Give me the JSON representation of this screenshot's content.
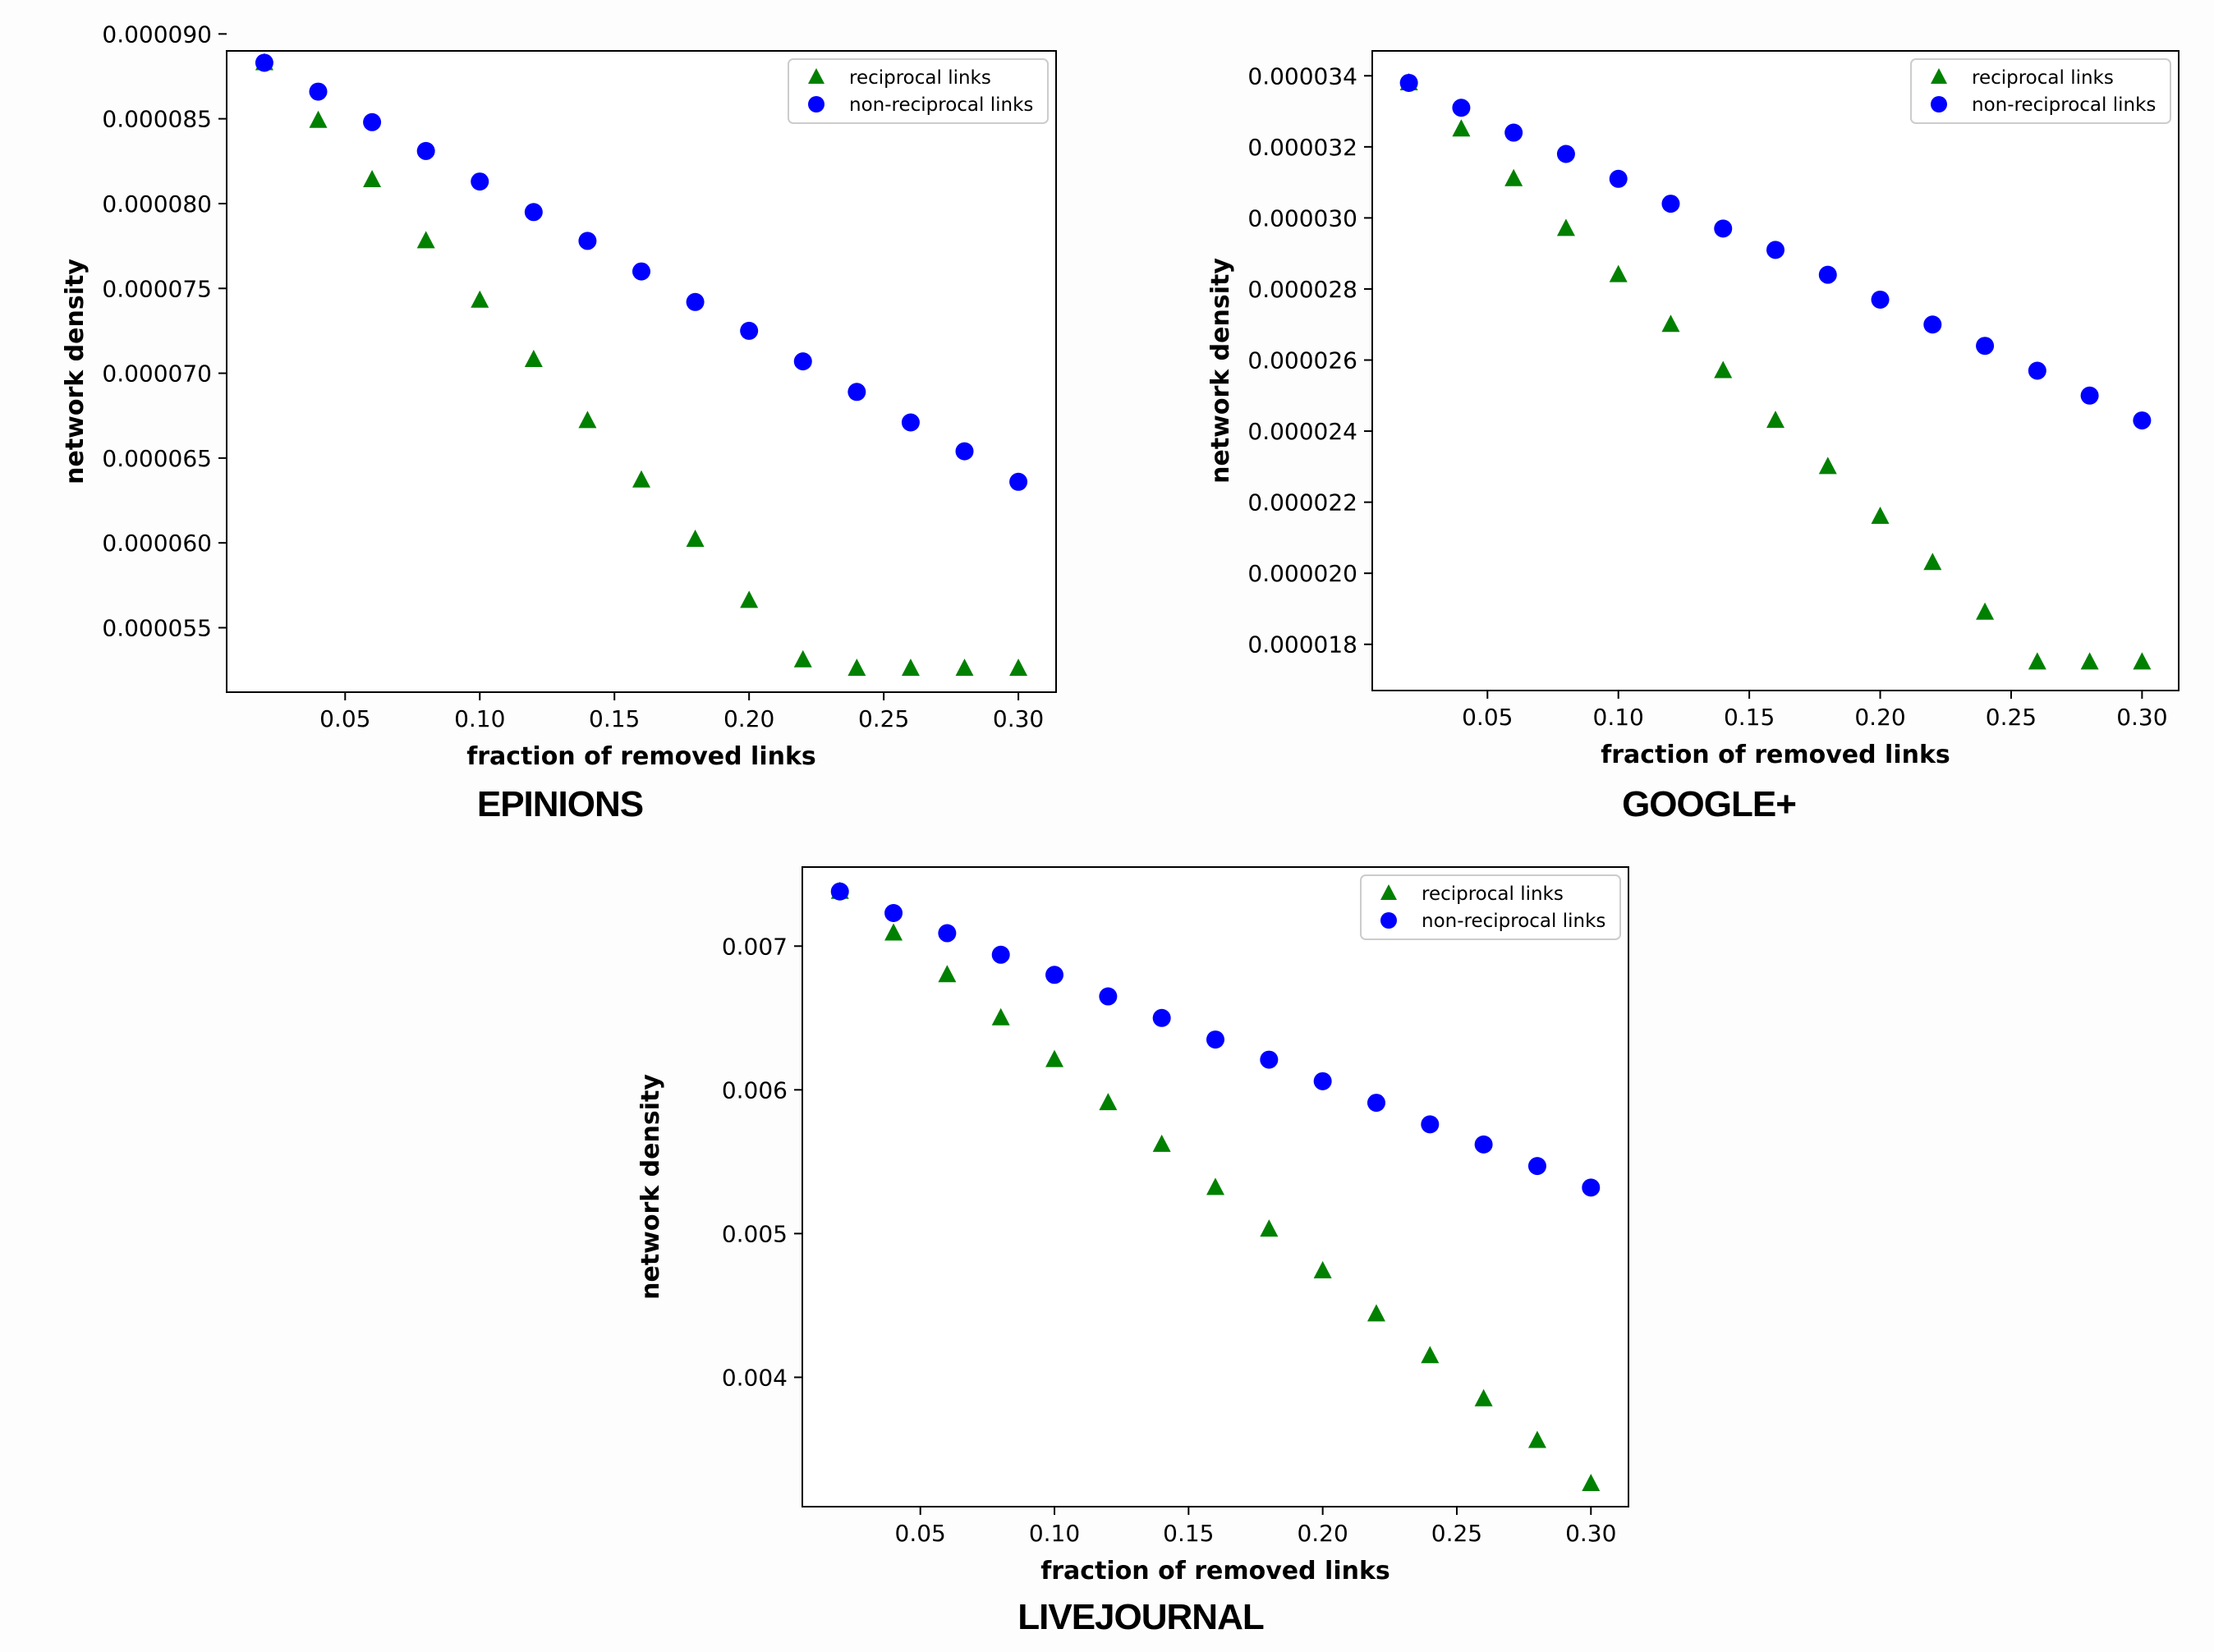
{
  "chart_data": [
    {
      "type": "scatter",
      "caption": "EPINIONS",
      "xlabel": "fraction of removed links",
      "ylabel": "network density",
      "xlim": [
        0.006,
        0.314
      ],
      "ylim": [
        5.12e-05,
        8.9e-05
      ],
      "xticks": [
        0.05,
        0.1,
        0.15,
        0.2,
        0.25,
        0.3
      ],
      "xtick_labels": [
        "0.05",
        "0.10",
        "0.15",
        "0.20",
        "0.25",
        "0.30"
      ],
      "yticks": [
        5.5e-05,
        6e-05,
        6.5e-05,
        7e-05,
        7.5e-05,
        8e-05,
        8.5e-05,
        9e-05
      ],
      "ytick_labels": [
        "0.000055",
        "0.000060",
        "0.000065",
        "0.000070",
        "0.000075",
        "0.000080",
        "0.000085",
        "0.000090"
      ],
      "legend_position": "top-right",
      "x": [
        0.02,
        0.04,
        0.06,
        0.08,
        0.1,
        0.12,
        0.14,
        0.16,
        0.18,
        0.2,
        0.22,
        0.24,
        0.26,
        0.28,
        0.3
      ],
      "series": [
        {
          "name": "reciprocal links",
          "marker": "triangle",
          "color": "#008000",
          "values": [
            8.83e-05,
            8.49e-05,
            8.14e-05,
            7.78e-05,
            7.43e-05,
            7.08e-05,
            6.72e-05,
            6.37e-05,
            6.02e-05,
            5.66e-05,
            5.31e-05,
            5.26e-05,
            5.26e-05,
            5.26e-05,
            5.26e-05
          ]
        },
        {
          "name": "non-reciprocal links",
          "marker": "circle",
          "color": "#0000ff",
          "values": [
            8.83e-05,
            8.66e-05,
            8.48e-05,
            8.31e-05,
            8.13e-05,
            7.95e-05,
            7.78e-05,
            7.6e-05,
            7.42e-05,
            7.25e-05,
            7.07e-05,
            6.89e-05,
            6.71e-05,
            6.54e-05,
            6.36e-05
          ]
        }
      ]
    },
    {
      "type": "scatter",
      "caption": "GOOGLE+",
      "xlabel": "fraction of removed links",
      "ylabel": "network density",
      "xlim": [
        0.006,
        0.314
      ],
      "ylim": [
        1.67e-05,
        3.47e-05
      ],
      "xticks": [
        0.05,
        0.1,
        0.15,
        0.2,
        0.25,
        0.3
      ],
      "xtick_labels": [
        "0.05",
        "0.10",
        "0.15",
        "0.20",
        "0.25",
        "0.30"
      ],
      "yticks": [
        1.8e-05,
        2e-05,
        2.2e-05,
        2.4e-05,
        2.6e-05,
        2.8e-05,
        3e-05,
        3.2e-05,
        3.4e-05
      ],
      "ytick_labels": [
        "0.000018",
        "0.000020",
        "0.000022",
        "0.000024",
        "0.000026",
        "0.000028",
        "0.000030",
        "0.000032",
        "0.000034"
      ],
      "legend_position": "top-right",
      "x": [
        0.02,
        0.04,
        0.06,
        0.08,
        0.1,
        0.12,
        0.14,
        0.16,
        0.18,
        0.2,
        0.22,
        0.24,
        0.26,
        0.28,
        0.3
      ],
      "series": [
        {
          "name": "reciprocal links",
          "marker": "triangle",
          "color": "#008000",
          "values": [
            3.38e-05,
            3.25e-05,
            3.11e-05,
            2.97e-05,
            2.84e-05,
            2.7e-05,
            2.57e-05,
            2.43e-05,
            2.3e-05,
            2.16e-05,
            2.03e-05,
            1.89e-05,
            1.75e-05,
            1.75e-05,
            1.75e-05
          ]
        },
        {
          "name": "non-reciprocal links",
          "marker": "circle",
          "color": "#0000ff",
          "values": [
            3.38e-05,
            3.31e-05,
            3.24e-05,
            3.18e-05,
            3.11e-05,
            3.04e-05,
            2.97e-05,
            2.91e-05,
            2.84e-05,
            2.77e-05,
            2.7e-05,
            2.64e-05,
            2.57e-05,
            2.5e-05,
            2.43e-05
          ]
        }
      ]
    },
    {
      "type": "scatter",
      "caption": "LIVEJOURNAL",
      "xlabel": "fraction of removed links",
      "ylabel": "network density",
      "xlim": [
        0.006,
        0.314
      ],
      "ylim": [
        0.0031,
        0.00755
      ],
      "xticks": [
        0.05,
        0.1,
        0.15,
        0.2,
        0.25,
        0.3
      ],
      "xtick_labels": [
        "0.05",
        "0.10",
        "0.15",
        "0.20",
        "0.25",
        "0.30"
      ],
      "yticks": [
        0.004,
        0.005,
        0.006,
        0.007
      ],
      "ytick_labels": [
        "0.004",
        "0.005",
        "0.006",
        "0.007"
      ],
      "legend_position": "top-right",
      "x": [
        0.02,
        0.04,
        0.06,
        0.08,
        0.1,
        0.12,
        0.14,
        0.16,
        0.18,
        0.2,
        0.22,
        0.24,
        0.26,
        0.28,
        0.3
      ],
      "series": [
        {
          "name": "reciprocal links",
          "marker": "triangle",
          "color": "#008000",
          "values": [
            0.00738,
            0.00709,
            0.0068,
            0.0065,
            0.00621,
            0.00591,
            0.00562,
            0.00532,
            0.00503,
            0.00474,
            0.00444,
            0.00415,
            0.00385,
            0.00356,
            0.00326
          ]
        },
        {
          "name": "non-reciprocal links",
          "marker": "circle",
          "color": "#0000ff",
          "values": [
            0.00738,
            0.00723,
            0.00709,
            0.00694,
            0.0068,
            0.00665,
            0.0065,
            0.00635,
            0.00621,
            0.00606,
            0.00591,
            0.00576,
            0.00562,
            0.00547,
            0.00532
          ]
        }
      ]
    }
  ]
}
